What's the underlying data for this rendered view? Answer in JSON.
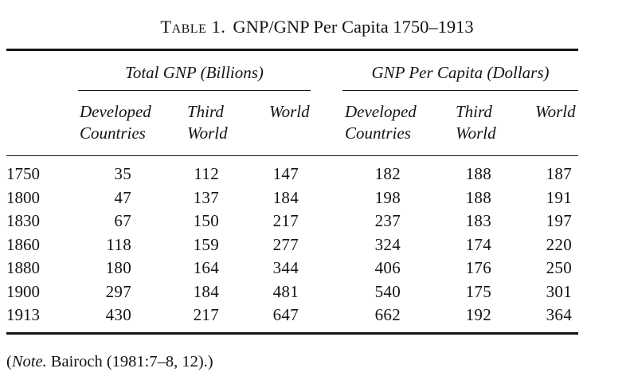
{
  "title": {
    "table_label": "Table 1.",
    "table_caption": "GNP/GNP Per Capita 1750–1913"
  },
  "table": {
    "groups": [
      {
        "label": "Total GNP (Billions)"
      },
      {
        "label": "GNP Per Capita (Dollars)"
      }
    ],
    "columns": [
      {
        "line1": "Developed",
        "line2": "Countries"
      },
      {
        "line1": "Third",
        "line2": "World"
      },
      {
        "line1": "World",
        "line2": ""
      },
      {
        "line1": "Developed",
        "line2": "Countries"
      },
      {
        "line1": "Third",
        "line2": "World"
      },
      {
        "line1": "World",
        "line2": ""
      }
    ],
    "rows": [
      {
        "year": "1750",
        "values": [
          "35",
          "112",
          "147",
          "182",
          "188",
          "187"
        ]
      },
      {
        "year": "1800",
        "values": [
          "47",
          "137",
          "184",
          "198",
          "188",
          "191"
        ]
      },
      {
        "year": "1830",
        "values": [
          "67",
          "150",
          "217",
          "237",
          "183",
          "197"
        ]
      },
      {
        "year": "1860",
        "values": [
          "118",
          "159",
          "277",
          "324",
          "174",
          "220"
        ]
      },
      {
        "year": "1880",
        "values": [
          "180",
          "164",
          "344",
          "406",
          "176",
          "250"
        ]
      },
      {
        "year": "1900",
        "values": [
          "297",
          "184",
          "481",
          "540",
          "175",
          "301"
        ]
      },
      {
        "year": "1913",
        "values": [
          "430",
          "217",
          "647",
          "662",
          "192",
          "364"
        ]
      }
    ]
  },
  "note": {
    "prefix": "(",
    "label": "Note.",
    "text": " Bairoch (1981:7–8, 12).)"
  },
  "colors": {
    "text": "#141414",
    "rule": "#141414",
    "background": "#ffffff"
  },
  "chart_data": {
    "type": "table",
    "title": "Table 1. GNP/GNP Per Capita 1750–1913",
    "row_label": "Year",
    "years": [
      1750,
      1800,
      1830,
      1860,
      1880,
      1900,
      1913
    ],
    "series": [
      {
        "group": "Total GNP (Billions)",
        "name": "Developed Countries",
        "values": [
          35,
          47,
          67,
          118,
          180,
          297,
          430
        ]
      },
      {
        "group": "Total GNP (Billions)",
        "name": "Third World",
        "values": [
          112,
          137,
          150,
          159,
          164,
          184,
          217
        ]
      },
      {
        "group": "Total GNP (Billions)",
        "name": "World",
        "values": [
          147,
          184,
          217,
          277,
          344,
          481,
          647
        ]
      },
      {
        "group": "GNP Per Capita (Dollars)",
        "name": "Developed Countries",
        "values": [
          182,
          198,
          237,
          324,
          406,
          540,
          662
        ]
      },
      {
        "group": "GNP Per Capita (Dollars)",
        "name": "Third World",
        "values": [
          188,
          188,
          183,
          174,
          176,
          175,
          192
        ]
      },
      {
        "group": "GNP Per Capita (Dollars)",
        "name": "World",
        "values": [
          187,
          191,
          197,
          220,
          250,
          301,
          364
        ]
      }
    ],
    "note": "(Note. Bairoch (1981:7–8, 12).)"
  }
}
